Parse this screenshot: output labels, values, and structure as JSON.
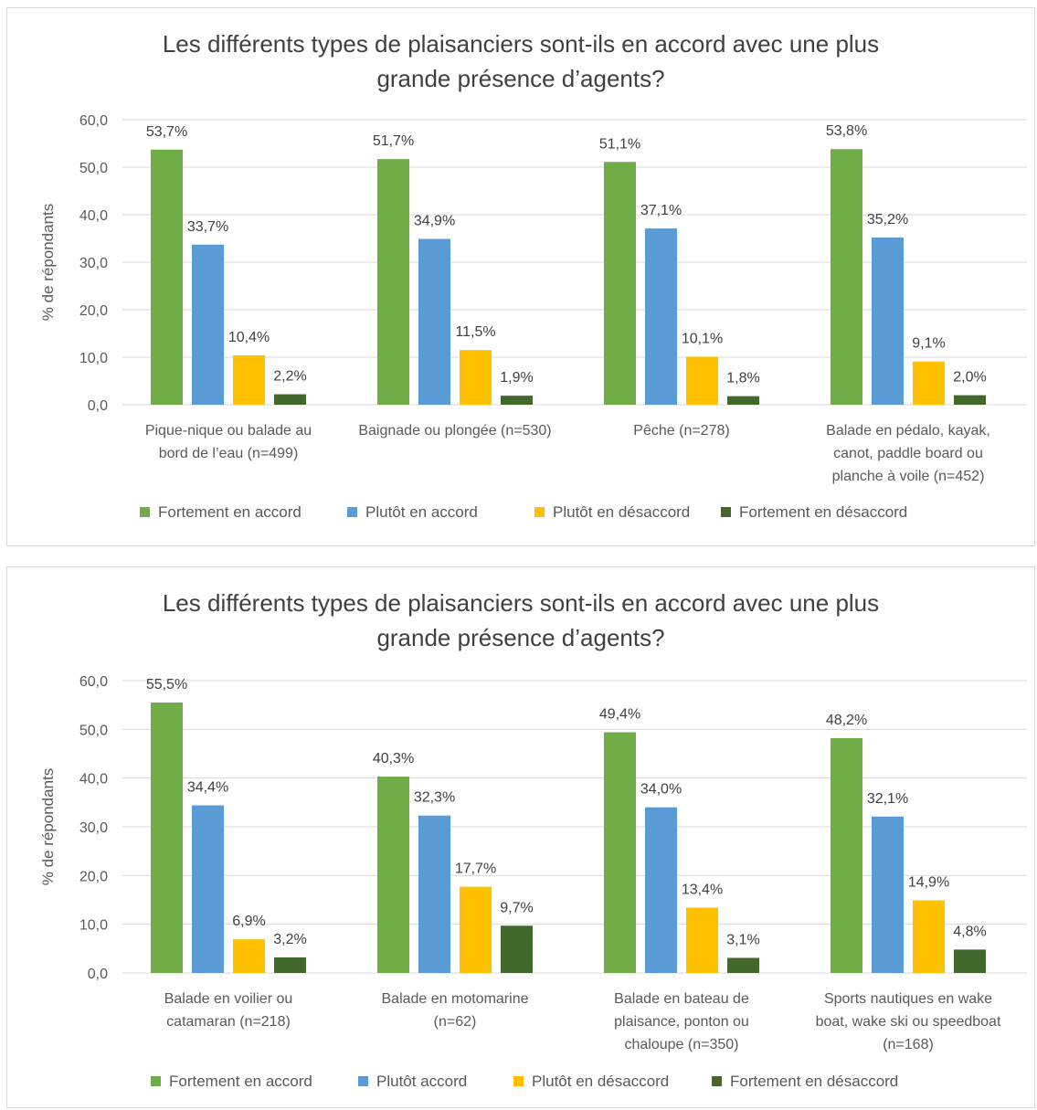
{
  "chart_data": [
    {
      "type": "bar",
      "title": [
        "Les différents types de plaisanciers sont-ils en accord avec une plus",
        "grande présence d’agents?"
      ],
      "ylabel": "% de répondants",
      "ylim": [
        0,
        60
      ],
      "yticks": [
        "0,0",
        "10,0",
        "20,0",
        "30,0",
        "40,0",
        "50,0",
        "60,0"
      ],
      "grid": true,
      "legend_position": "bottom",
      "categories": [
        [
          "Pique-nique ou balade au",
          "bord de l’eau (n=499)"
        ],
        [
          "Baignade ou plongée (n=530)"
        ],
        [
          "Pêche (n=278)"
        ],
        [
          "Balade en pédalo, kayak,",
          "canot, paddle board ou",
          "planche à voile (n=452)"
        ]
      ],
      "series": [
        {
          "name": "Fortement en accord",
          "color": "#70ad47",
          "values": [
            53.7,
            51.7,
            51.1,
            53.8
          ],
          "labels": [
            "53,7%",
            "51,7%",
            "51,1%",
            "53,8%"
          ]
        },
        {
          "name": "Plutôt en accord",
          "color": "#5b9bd5",
          "values": [
            33.7,
            34.9,
            37.1,
            35.2
          ],
          "labels": [
            "33,7%",
            "34,9%",
            "37,1%",
            "35,2%"
          ]
        },
        {
          "name": "Plutôt en désaccord",
          "color": "#ffc000",
          "values": [
            10.4,
            11.5,
            10.1,
            9.1
          ],
          "labels": [
            "10,4%",
            "11,5%",
            "10,1%",
            "9,1%"
          ]
        },
        {
          "name": "Fortement en désaccord",
          "color": "#43682b",
          "values": [
            2.2,
            1.9,
            1.8,
            2.0
          ],
          "labels": [
            "2,2%",
            "1,9%",
            "1,8%",
            "2,0%"
          ]
        }
      ]
    },
    {
      "type": "bar",
      "title": [
        "Les différents types de plaisanciers sont-ils en accord avec une plus",
        "grande présence d’agents?"
      ],
      "ylabel": "% de répondants",
      "ylim": [
        0,
        60
      ],
      "yticks": [
        "0,0",
        "10,0",
        "20,0",
        "30,0",
        "40,0",
        "50,0",
        "60,0"
      ],
      "grid": true,
      "legend_position": "bottom",
      "categories": [
        [
          "Balade en voilier ou",
          "catamaran (n=218)"
        ],
        [
          "Balade en motomarine",
          "(n=62)"
        ],
        [
          "Balade en bateau de",
          "plaisance, ponton ou",
          "chaloupe (n=350)"
        ],
        [
          "Sports nautiques en wake",
          "boat, wake ski ou speedboat",
          "(n=168)"
        ]
      ],
      "series": [
        {
          "name": "Fortement en accord",
          "color": "#70ad47",
          "values": [
            55.5,
            40.3,
            49.4,
            48.2
          ],
          "labels": [
            "55,5%",
            "40,3%",
            "49,4%",
            "48,2%"
          ]
        },
        {
          "name": "Plutôt accord",
          "color": "#5b9bd5",
          "values": [
            34.4,
            32.3,
            34.0,
            32.1
          ],
          "labels": [
            "34,4%",
            "32,3%",
            "34,0%",
            "32,1%"
          ]
        },
        {
          "name": "Plutôt en désaccord",
          "color": "#ffc000",
          "values": [
            6.9,
            17.7,
            13.4,
            14.9
          ],
          "labels": [
            "6,9%",
            "17,7%",
            "13,4%",
            "14,9%"
          ]
        },
        {
          "name": "Fortement en désaccord",
          "color": "#43682b",
          "values": [
            3.2,
            9.7,
            3.1,
            4.8
          ],
          "labels": [
            "3,2%",
            "9,7%",
            "3,1%",
            "4,8%"
          ]
        }
      ]
    }
  ]
}
